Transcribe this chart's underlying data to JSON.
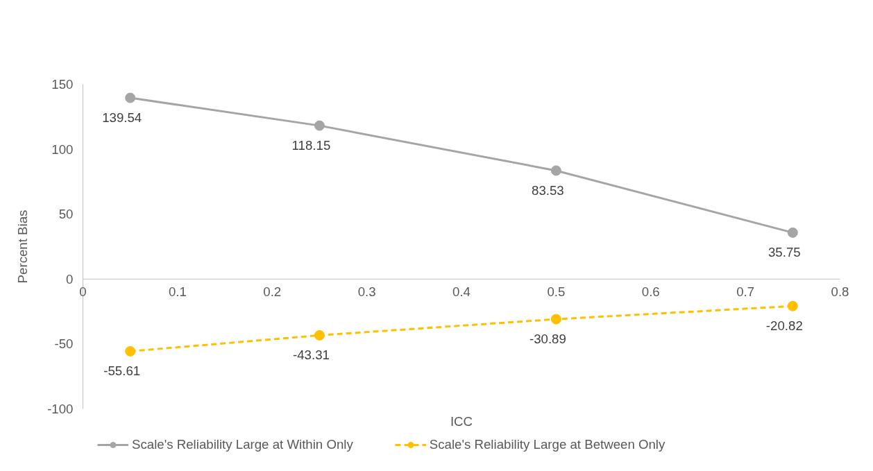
{
  "chart_data": {
    "type": "line",
    "xlabel": "ICC",
    "ylabel": "Percent Bias",
    "x": [
      0.05,
      0.25,
      0.5,
      0.75
    ],
    "series": [
      {
        "name": "Scale's Reliability Large at Within Only",
        "color": "#a5a5a5",
        "line_style": "solid",
        "values": [
          139.54,
          118.15,
          83.53,
          35.75
        ]
      },
      {
        "name": "Scale's Reliability Large at Between Only",
        "color": "#ffc000",
        "line_style": "dashed",
        "values": [
          -55.61,
          -43.31,
          -30.89,
          -20.82
        ]
      }
    ],
    "xlim": [
      0,
      0.8
    ],
    "xticks": [
      0,
      0.1,
      0.2,
      0.3,
      0.4,
      0.5,
      0.6,
      0.7,
      0.8
    ],
    "ylim": [
      -100,
      150
    ],
    "yticks": [
      -100,
      -50,
      0,
      50,
      100,
      150
    ],
    "grid": false,
    "legend": "bottom",
    "marker": "circle",
    "data_labels": true
  }
}
